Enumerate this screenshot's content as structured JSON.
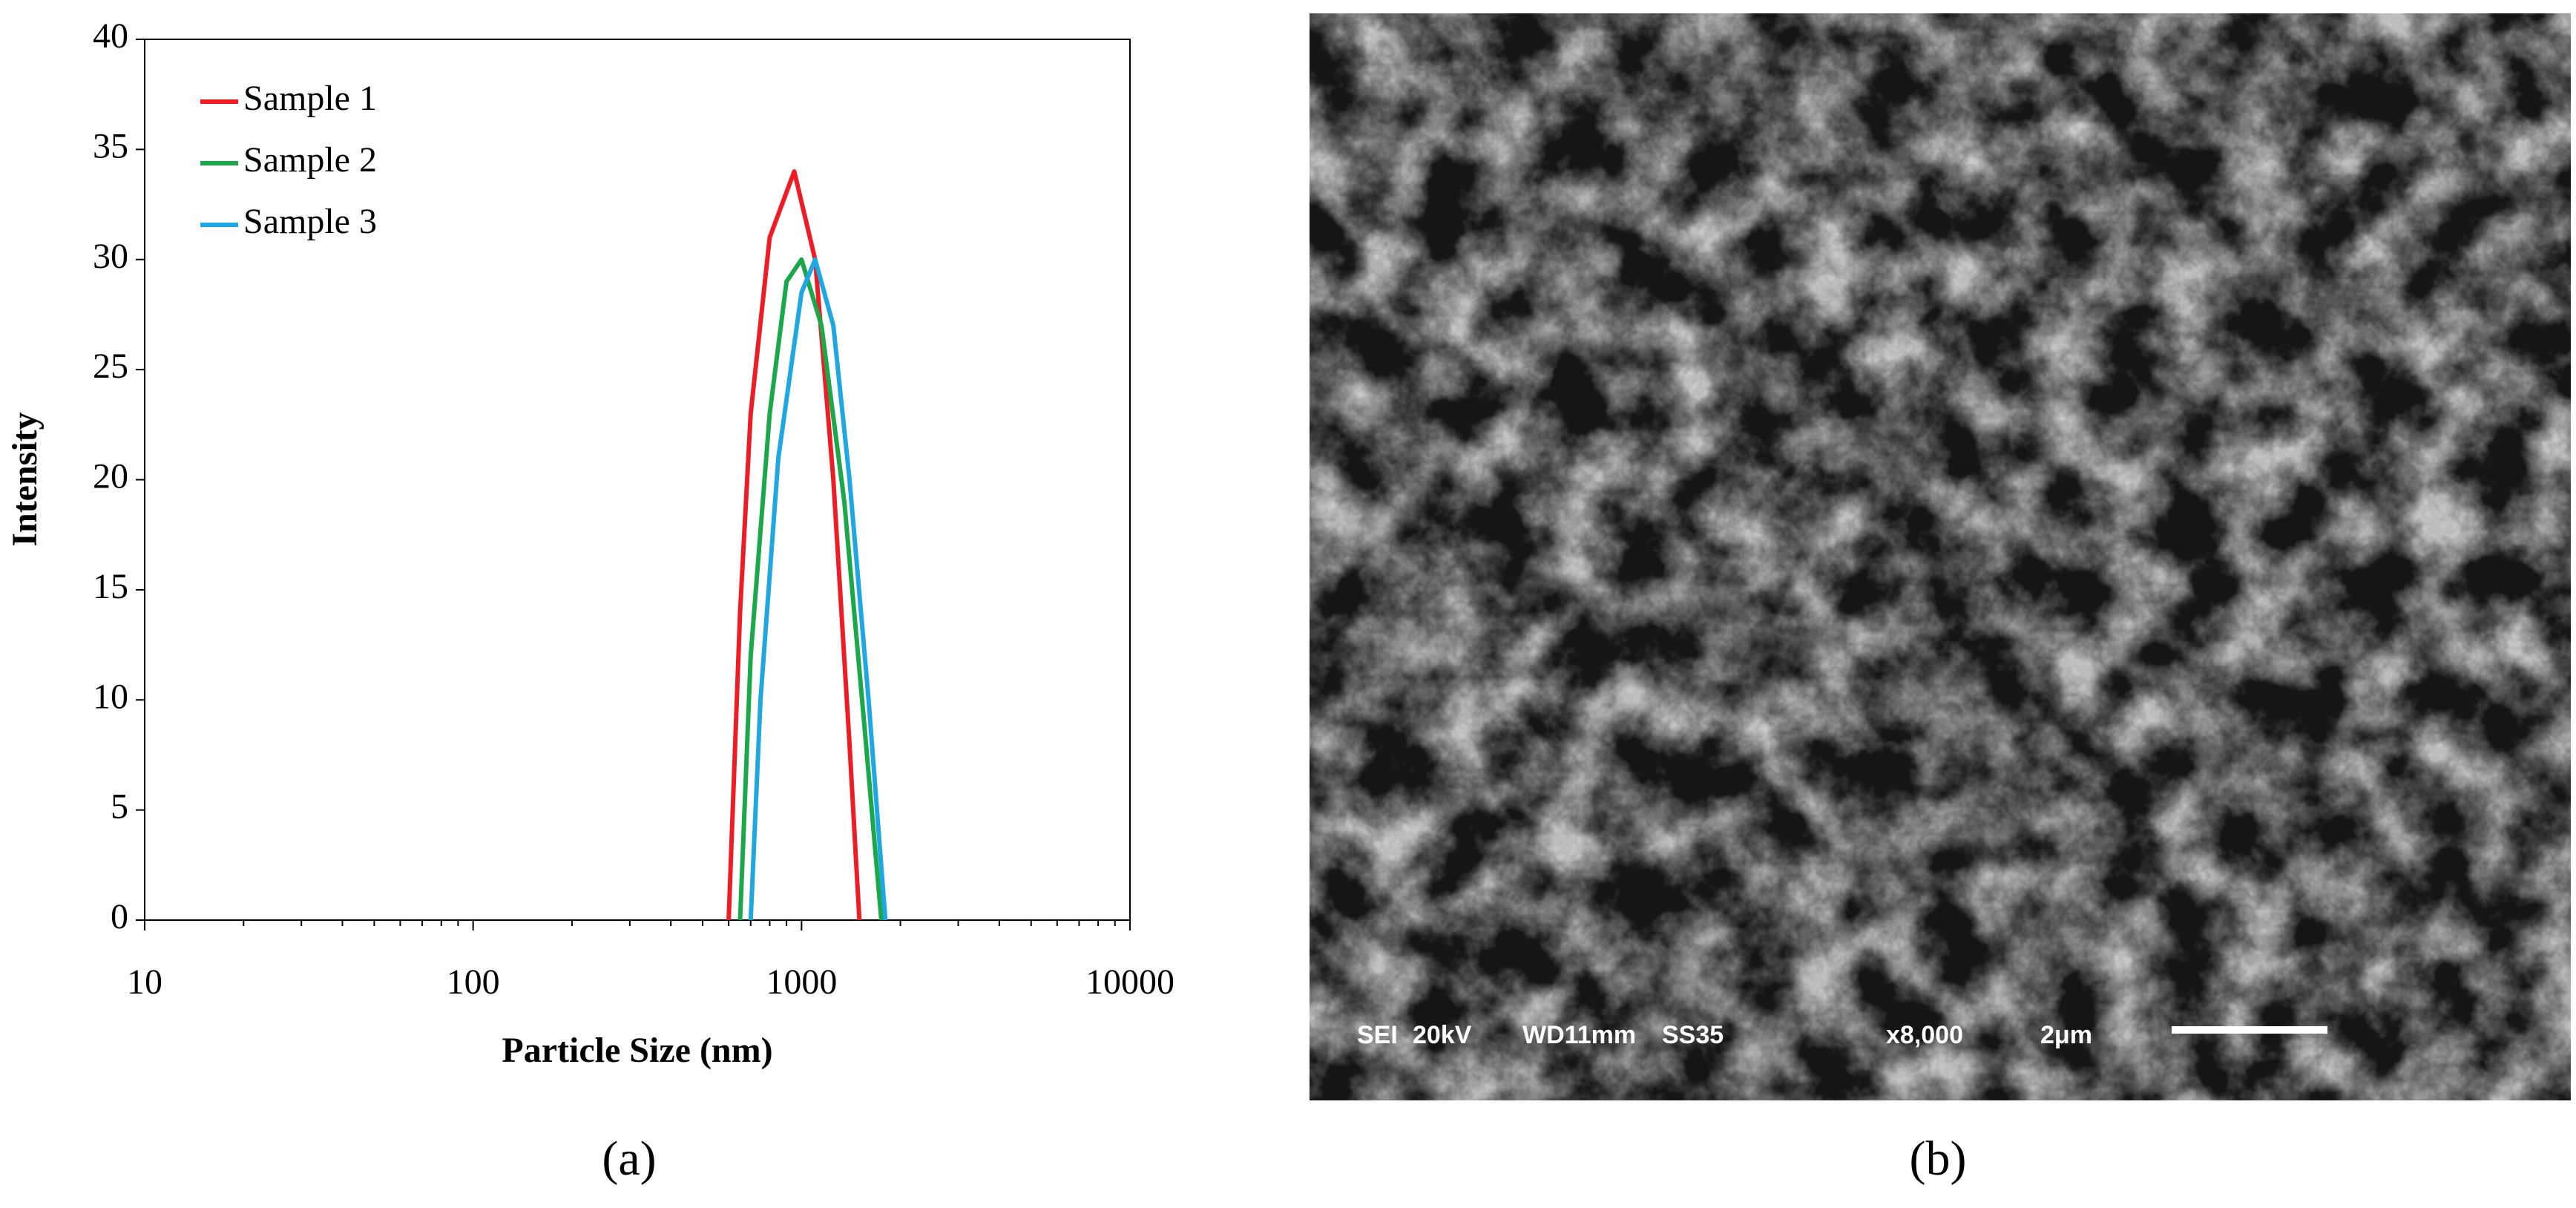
{
  "chart_data": {
    "type": "line",
    "x_label": "Particle Size (nm)",
    "y_label": "Intensity",
    "xscale": "log",
    "xlim": [
      10,
      10000
    ],
    "xticks": [
      10,
      100,
      1000,
      10000
    ],
    "ylim": [
      0,
      40
    ],
    "yticks": [
      0,
      5,
      10,
      15,
      20,
      25,
      30,
      35,
      40
    ],
    "grid": false,
    "legend": "upper left",
    "series": [
      {
        "name": "Sample 1",
        "color": "#ee1c25",
        "x": [
          600,
          650,
          700,
          800,
          950,
          1100,
          1250,
          1400,
          1500
        ],
        "values": [
          0,
          14,
          23,
          31,
          34,
          30,
          20,
          8,
          0
        ]
      },
      {
        "name": "Sample 2",
        "color": "#1aa84a",
        "x": [
          650,
          700,
          800,
          900,
          1000,
          1150,
          1350,
          1550,
          1750
        ],
        "values": [
          0,
          12,
          23,
          29,
          30,
          27,
          19,
          9,
          0
        ]
      },
      {
        "name": "Sample 3",
        "color": "#1ea7e1",
        "x": [
          700,
          750,
          850,
          1000,
          1100,
          1250,
          1400,
          1600,
          1800
        ],
        "values": [
          0,
          10,
          21,
          28.5,
          30,
          27,
          20,
          10,
          0
        ]
      }
    ]
  },
  "panel_labels": [
    "(a)",
    "(b)"
  ],
  "sem_image": {
    "labels": [
      "SEI",
      "20kV",
      "WD11mm",
      "SS35",
      "x8,000",
      "2μm"
    ]
  }
}
